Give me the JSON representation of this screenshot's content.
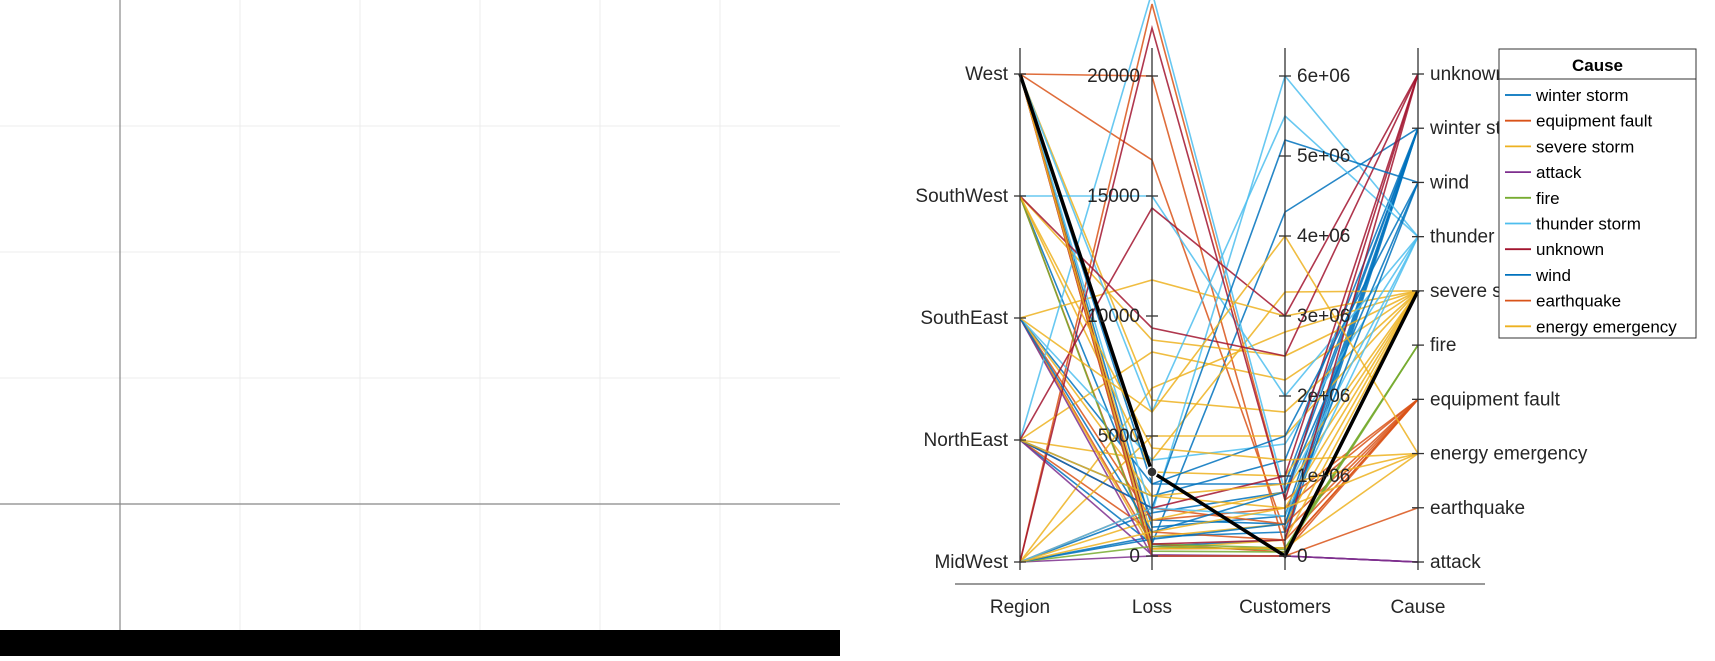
{
  "chart_data": {
    "type": "parallel-coordinates",
    "dimensions": [
      {
        "name": "Region",
        "kind": "category",
        "ticks": [
          "MidWest",
          "NorthEast",
          "SouthEast",
          "SouthWest",
          "West"
        ]
      },
      {
        "name": "Loss",
        "kind": "numeric",
        "range": [
          0,
          24000
        ],
        "ticks": [
          0,
          5000,
          10000,
          15000,
          20000
        ],
        "tick_labels": [
          "0",
          "5000",
          "10000",
          "15000",
          "20000"
        ]
      },
      {
        "name": "Customers",
        "kind": "numeric",
        "range": [
          0,
          6200000
        ],
        "ticks": [
          0,
          1000000,
          2000000,
          3000000,
          4000000,
          5000000,
          6000000
        ],
        "tick_labels": [
          "0",
          "1e+06",
          "2e+06",
          "3e+06",
          "4e+06",
          "5e+06",
          "6e+06"
        ]
      },
      {
        "name": "Cause",
        "kind": "category",
        "ticks": [
          "attack",
          "earthquake",
          "energy emergency",
          "equipment fault",
          "fire",
          "severe storm",
          "thunder storm",
          "wind",
          "winter storm",
          "unknown"
        ]
      }
    ],
    "legend": {
      "title": "Cause",
      "placement": "top-right",
      "entries": [
        {
          "label": "winter storm",
          "color": "#0072bd"
        },
        {
          "label": "equipment fault",
          "color": "#d95319"
        },
        {
          "label": "severe storm",
          "color": "#edb120"
        },
        {
          "label": "attack",
          "color": "#7e2f8e"
        },
        {
          "label": "fire",
          "color": "#77ac30"
        },
        {
          "label": "thunder storm",
          "color": "#4dbeee"
        },
        {
          "label": "unknown",
          "color": "#a2142f"
        },
        {
          "label": "wind",
          "color": "#0072bd"
        },
        {
          "label": "earthquake",
          "color": "#d95319"
        },
        {
          "label": "energy emergency",
          "color": "#edb120"
        }
      ]
    },
    "highlight": {
      "Region": "West",
      "Loss": 3500,
      "Customers": 0,
      "Cause": "severe storm",
      "color": "#000000"
    },
    "series": [
      {
        "cause": "winter storm",
        "values": [
          "West",
          1200,
          500000,
          "winter storm"
        ]
      },
      {
        "cause": "winter storm",
        "values": [
          "NorthEast",
          2500,
          1200000,
          "winter storm"
        ]
      },
      {
        "cause": "winter storm",
        "values": [
          "MidWest",
          800,
          300000,
          "winter storm"
        ]
      },
      {
        "cause": "winter storm",
        "values": [
          "SouthEast",
          3000,
          900000,
          "winter storm"
        ]
      },
      {
        "cause": "winter storm",
        "values": [
          "SouthWest",
          1500,
          400000,
          "winter storm"
        ]
      },
      {
        "cause": "winter storm",
        "values": [
          "NorthEast",
          500,
          4300000,
          "winter storm"
        ]
      },
      {
        "cause": "winter storm",
        "values": [
          "West",
          400,
          200000,
          "winter storm"
        ]
      },
      {
        "cause": "winter storm",
        "values": [
          "MidWest",
          1800,
          800000,
          "winter storm"
        ]
      },
      {
        "cause": "equipment fault",
        "values": [
          "West",
          20000,
          100000,
          "equipment fault"
        ]
      },
      {
        "cause": "equipment fault",
        "values": [
          "West",
          16500,
          300000,
          "equipment fault"
        ]
      },
      {
        "cause": "equipment fault",
        "values": [
          "SouthEast",
          500,
          50000,
          "equipment fault"
        ]
      },
      {
        "cause": "equipment fault",
        "values": [
          "MidWest",
          2000,
          400000,
          "equipment fault"
        ]
      },
      {
        "cause": "equipment fault",
        "values": [
          "NorthEast",
          1000,
          200000,
          "equipment fault"
        ]
      },
      {
        "cause": "equipment fault",
        "values": [
          "SouthWest",
          300,
          100000,
          "equipment fault"
        ]
      },
      {
        "cause": "equipment fault",
        "values": [
          "MidWest",
          23000,
          700000,
          "equipment fault"
        ]
      },
      {
        "cause": "equipment fault",
        "values": [
          "SouthEast",
          1500,
          600000,
          "equipment fault"
        ]
      },
      {
        "cause": "severe storm",
        "values": [
          "MidWest",
          5000,
          1500000,
          "severe storm"
        ]
      },
      {
        "cause": "severe storm",
        "values": [
          "SouthEast",
          11500,
          3000000,
          "severe storm"
        ]
      },
      {
        "cause": "severe storm",
        "values": [
          "NorthEast",
          8500,
          2200000,
          "severe storm"
        ]
      },
      {
        "cause": "severe storm",
        "values": [
          "West",
          6500,
          1800000,
          "severe storm"
        ]
      },
      {
        "cause": "severe storm",
        "values": [
          "SouthWest",
          9000,
          2500000,
          "severe storm"
        ]
      },
      {
        "cause": "severe storm",
        "values": [
          "MidWest",
          1500,
          800000,
          "severe storm"
        ]
      },
      {
        "cause": "severe storm",
        "values": [
          "SouthEast",
          2500,
          600000,
          "severe storm"
        ]
      },
      {
        "cause": "severe storm",
        "values": [
          "NorthEast",
          4000,
          3300000,
          "severe storm"
        ]
      },
      {
        "cause": "severe storm",
        "values": [
          "West",
          800,
          400000,
          "severe storm"
        ]
      },
      {
        "cause": "severe storm",
        "values": [
          "SouthWest",
          3500,
          1000000,
          "severe storm"
        ]
      },
      {
        "cause": "severe storm",
        "values": [
          "MidWest",
          7000,
          2800000,
          "severe storm"
        ]
      },
      {
        "cause": "severe storm",
        "values": [
          "SouthEast",
          300,
          200000,
          "severe storm"
        ]
      },
      {
        "cause": "attack",
        "values": [
          "MidWest",
          0,
          0,
          "attack"
        ]
      },
      {
        "cause": "attack",
        "values": [
          "NorthEast",
          50,
          0,
          "attack"
        ]
      },
      {
        "cause": "attack",
        "values": [
          "West",
          0,
          0,
          "attack"
        ]
      },
      {
        "cause": "attack",
        "values": [
          "SouthEast",
          0,
          0,
          "attack"
        ]
      },
      {
        "cause": "fire",
        "values": [
          "West",
          500,
          100000,
          "fire"
        ]
      },
      {
        "cause": "fire",
        "values": [
          "SouthWest",
          200,
          50000,
          "fire"
        ]
      },
      {
        "cause": "fire",
        "values": [
          "MidWest",
          400,
          80000,
          "fire"
        ]
      },
      {
        "cause": "thunder storm",
        "values": [
          "West",
          1800,
          6000000,
          "thunder storm"
        ]
      },
      {
        "cause": "thunder storm",
        "values": [
          "SouthWest",
          15000,
          2000000,
          "thunder storm"
        ]
      },
      {
        "cause": "thunder storm",
        "values": [
          "NorthEast",
          23500,
          800000,
          "thunder storm"
        ]
      },
      {
        "cause": "thunder storm",
        "values": [
          "SouthEast",
          4000,
          1400000,
          "thunder storm"
        ]
      },
      {
        "cause": "thunder storm",
        "values": [
          "MidWest",
          2000,
          500000,
          "thunder storm"
        ]
      },
      {
        "cause": "thunder storm",
        "values": [
          "West",
          6000,
          5500000,
          "thunder storm"
        ]
      },
      {
        "cause": "unknown",
        "values": [
          "NorthEast",
          14500,
          3000000,
          "unknown"
        ]
      },
      {
        "cause": "unknown",
        "values": [
          "SouthWest",
          9500,
          2500000,
          "unknown"
        ]
      },
      {
        "cause": "unknown",
        "values": [
          "MidWest",
          22000,
          700000,
          "unknown"
        ]
      },
      {
        "cause": "unknown",
        "values": [
          "NorthEast",
          2000,
          1000000,
          "unknown"
        ]
      },
      {
        "cause": "unknown",
        "values": [
          "West",
          500,
          200000,
          "unknown"
        ]
      },
      {
        "cause": "wind",
        "values": [
          "West",
          3000,
          1500000,
          "wind"
        ]
      },
      {
        "cause": "wind",
        "values": [
          "SouthEast",
          1000,
          800000,
          "wind"
        ]
      },
      {
        "cause": "wind",
        "values": [
          "MidWest",
          700,
          400000,
          "wind"
        ]
      },
      {
        "cause": "wind",
        "values": [
          "NorthEast",
          2000,
          5200000,
          "wind"
        ]
      },
      {
        "cause": "earthquake",
        "values": [
          "West",
          0,
          0,
          "earthquake"
        ]
      },
      {
        "cause": "energy emergency",
        "values": [
          "SouthWest",
          4500,
          1200000,
          "energy emergency"
        ]
      },
      {
        "cause": "energy emergency",
        "values": [
          "MidWest",
          1000,
          600000,
          "energy emergency"
        ]
      },
      {
        "cause": "energy emergency",
        "values": [
          "SouthEast",
          6000,
          4000000,
          "energy emergency"
        ]
      },
      {
        "cause": "energy emergency",
        "values": [
          "NorthEast",
          2500,
          900000,
          "energy emergency"
        ]
      },
      {
        "cause": "energy emergency",
        "values": [
          "West",
          300,
          100000,
          "energy emergency"
        ]
      }
    ]
  }
}
